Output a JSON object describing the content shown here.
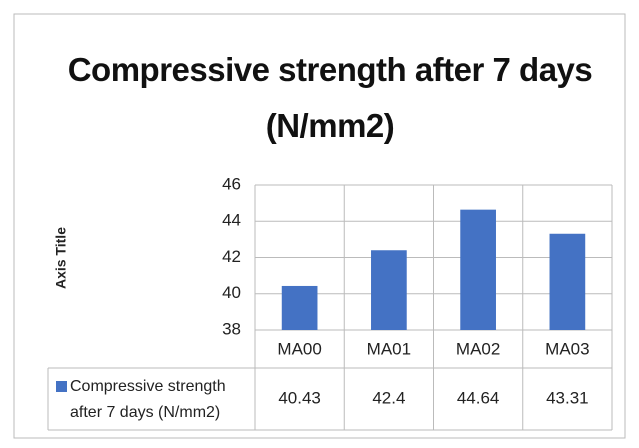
{
  "chart_data": {
    "type": "bar",
    "title": "Compressive strength  after 7 days (N/mm2)",
    "y_axis_label": "Axis Title",
    "categories": [
      "MA00",
      "MA01",
      "MA02",
      "MA03"
    ],
    "series": [
      {
        "name": "Compressive strength after 7 days (N/mm2)",
        "color": "#4472c4",
        "values": [
          40.43,
          42.4,
          44.64,
          43.31
        ]
      }
    ],
    "ylim": [
      38,
      46
    ],
    "yticks": [
      38,
      40,
      42,
      44,
      46
    ],
    "grid": true,
    "data_table": true
  }
}
